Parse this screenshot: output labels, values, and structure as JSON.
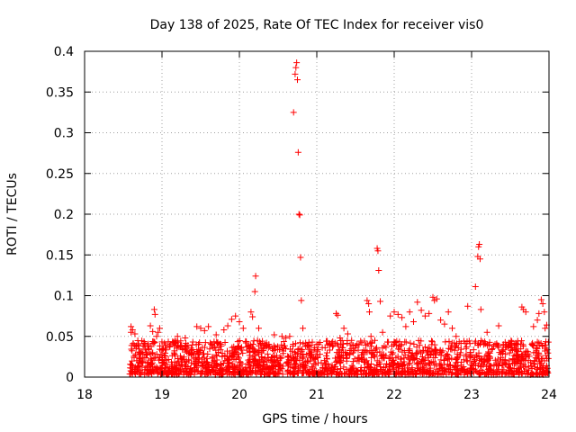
{
  "chart_data": {
    "type": "scatter",
    "title": "Day 138 of 2025, Rate Of TEC Index for receiver vis0",
    "xlabel": "GPS time / hours",
    "ylabel": "ROTI / TECUs",
    "xlim": [
      18,
      24
    ],
    "ylim": [
      0,
      0.4
    ],
    "grid": true,
    "marker": "+",
    "marker_color": "#ff0000",
    "x_ticks": [
      {
        "value": 18,
        "label": "18"
      },
      {
        "value": 19,
        "label": "19"
      },
      {
        "value": 20,
        "label": "20"
      },
      {
        "value": 21,
        "label": "21"
      },
      {
        "value": 22,
        "label": "22"
      },
      {
        "value": 23,
        "label": "23"
      },
      {
        "value": 24,
        "label": "24"
      }
    ],
    "y_ticks": [
      {
        "value": 0,
        "label": "0"
      },
      {
        "value": 0.05,
        "label": "0.05"
      },
      {
        "value": 0.1,
        "label": "0.1"
      },
      {
        "value": 0.15,
        "label": "0.15"
      },
      {
        "value": 0.2,
        "label": "0.2"
      },
      {
        "value": 0.25,
        "label": "0.25"
      },
      {
        "value": 0.3,
        "label": "0.3"
      },
      {
        "value": 0.35,
        "label": "0.35"
      },
      {
        "value": 0.4,
        "label": "0.4"
      }
    ],
    "series": [
      {
        "name": "ROTI",
        "points": [
          [
            18.6,
            0.062
          ],
          [
            18.6,
            0.055
          ],
          [
            18.62,
            0.058
          ],
          [
            18.63,
            0.041
          ],
          [
            18.65,
            0.053
          ],
          [
            18.7,
            0.03
          ],
          [
            18.75,
            0.018
          ],
          [
            18.85,
            0.063
          ],
          [
            18.88,
            0.056
          ],
          [
            18.9,
            0.083
          ],
          [
            18.91,
            0.077
          ],
          [
            18.93,
            0.05
          ],
          [
            18.95,
            0.055
          ],
          [
            18.97,
            0.06
          ],
          [
            19.15,
            0.043
          ],
          [
            19.2,
            0.05
          ],
          [
            19.3,
            0.048
          ],
          [
            19.45,
            0.062
          ],
          [
            19.5,
            0.06
          ],
          [
            19.55,
            0.057
          ],
          [
            19.6,
            0.062
          ],
          [
            19.7,
            0.052
          ],
          [
            19.8,
            0.058
          ],
          [
            19.85,
            0.063
          ],
          [
            19.9,
            0.071
          ],
          [
            19.95,
            0.075
          ],
          [
            20.0,
            0.068
          ],
          [
            20.05,
            0.06
          ],
          [
            20.15,
            0.08
          ],
          [
            20.17,
            0.074
          ],
          [
            20.2,
            0.105
          ],
          [
            20.21,
            0.124
          ],
          [
            20.25,
            0.06
          ],
          [
            20.35,
            0.042
          ],
          [
            20.45,
            0.052
          ],
          [
            20.55,
            0.05
          ],
          [
            20.6,
            0.048
          ],
          [
            20.65,
            0.05
          ],
          [
            20.7,
            0.325
          ],
          [
            20.72,
            0.372
          ],
          [
            20.73,
            0.38
          ],
          [
            20.74,
            0.386
          ],
          [
            20.75,
            0.365
          ],
          [
            20.76,
            0.276
          ],
          [
            20.77,
            0.2
          ],
          [
            20.78,
            0.199
          ],
          [
            20.79,
            0.147
          ],
          [
            20.8,
            0.094
          ],
          [
            20.82,
            0.06
          ],
          [
            20.9,
            0.038
          ],
          [
            21.0,
            0.04
          ],
          [
            21.25,
            0.078
          ],
          [
            21.27,
            0.076
          ],
          [
            21.3,
            0.048
          ],
          [
            21.35,
            0.06
          ],
          [
            21.4,
            0.053
          ],
          [
            21.45,
            0.045
          ],
          [
            21.65,
            0.094
          ],
          [
            21.67,
            0.09
          ],
          [
            21.68,
            0.08
          ],
          [
            21.7,
            0.05
          ],
          [
            21.75,
            0.045
          ],
          [
            21.78,
            0.158
          ],
          [
            21.79,
            0.155
          ],
          [
            21.8,
            0.131
          ],
          [
            21.82,
            0.093
          ],
          [
            21.85,
            0.055
          ],
          [
            21.95,
            0.075
          ],
          [
            22.0,
            0.08
          ],
          [
            22.05,
            0.077
          ],
          [
            22.1,
            0.073
          ],
          [
            22.15,
            0.062
          ],
          [
            22.2,
            0.08
          ],
          [
            22.25,
            0.068
          ],
          [
            22.3,
            0.092
          ],
          [
            22.35,
            0.082
          ],
          [
            22.4,
            0.075
          ],
          [
            22.45,
            0.078
          ],
          [
            22.5,
            0.098
          ],
          [
            22.52,
            0.094
          ],
          [
            22.55,
            0.096
          ],
          [
            22.6,
            0.07
          ],
          [
            22.65,
            0.065
          ],
          [
            22.7,
            0.08
          ],
          [
            22.75,
            0.06
          ],
          [
            22.8,
            0.05
          ],
          [
            22.95,
            0.087
          ],
          [
            23.05,
            0.111
          ],
          [
            23.08,
            0.148
          ],
          [
            23.09,
            0.16
          ],
          [
            23.1,
            0.163
          ],
          [
            23.11,
            0.145
          ],
          [
            23.12,
            0.083
          ],
          [
            23.2,
            0.055
          ],
          [
            23.35,
            0.063
          ],
          [
            23.5,
            0.04
          ],
          [
            23.65,
            0.086
          ],
          [
            23.67,
            0.083
          ],
          [
            23.7,
            0.08
          ],
          [
            23.8,
            0.062
          ],
          [
            23.85,
            0.07
          ],
          [
            23.87,
            0.078
          ],
          [
            23.9,
            0.095
          ],
          [
            23.92,
            0.09
          ],
          [
            23.94,
            0.08
          ],
          [
            23.95,
            0.06
          ],
          [
            23.97,
            0.064
          ]
        ]
      }
    ],
    "dense_band": {
      "x_start": 18.58,
      "x_end": 24,
      "y_min": 0.003,
      "y_max": 0.045,
      "count": 1900
    }
  }
}
